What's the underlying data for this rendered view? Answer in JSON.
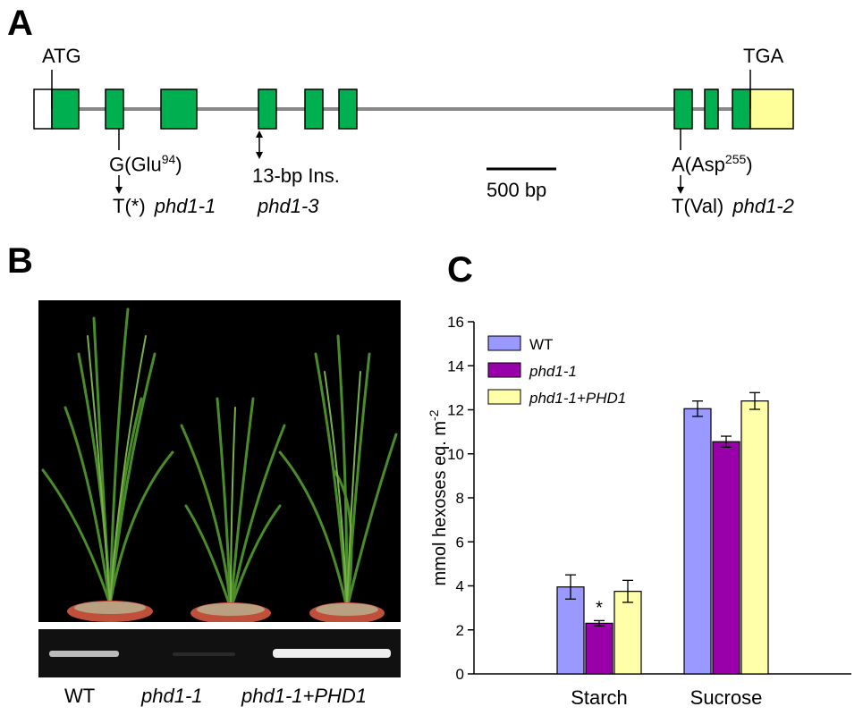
{
  "panel_a": {
    "letter": "A",
    "start_codon": "ATG",
    "stop_codon": "TGA",
    "mut1_from": "G(Glu",
    "mut1_from_sup": "94",
    "mut1_from_end": ")",
    "mut1_to": "T(",
    "mut1_star": "*",
    "mut1_to_end": ")",
    "mut1_allele": "phd1-1",
    "mut3_change": "13-bp Ins.",
    "mut3_allele": "phd1-3",
    "scale_label": "500 bp",
    "mut2_from": "A(Asp",
    "mut2_from_sup": "255",
    "mut2_from_end": ")",
    "mut2_to": "T(Val)",
    "mut2_allele": "phd1-2",
    "colors": {
      "exon": "#00b050",
      "utr5": "#ffffff",
      "utr3": "#ffff99",
      "intron": "#888888"
    }
  },
  "panel_b": {
    "letter": "B",
    "labels": [
      "WT",
      "phd1-1",
      "phd1-1+"
    ],
    "label3_suffix": "PHD1"
  },
  "panel_c": {
    "letter": "C",
    "chart_data": {
      "type": "bar",
      "categories": [
        "Starch",
        "Sucrose"
      ],
      "ylabel": "mmol hexoses eq. m",
      "ylabel_sup": "-2",
      "ylim": [
        0,
        16
      ],
      "yticks": [
        "0",
        "2",
        "4",
        "6",
        "8",
        "10",
        "12",
        "14",
        "16"
      ],
      "legend_position": "top-left",
      "series": [
        {
          "name": "WT",
          "values": [
            3.95,
            12.05
          ],
          "errors": [
            0.55,
            0.35
          ],
          "color": "#9999ff"
        },
        {
          "name": "phd1-1",
          "values": [
            2.3,
            10.55
          ],
          "errors": [
            0.12,
            0.25
          ],
          "color": "#9900aa"
        },
        {
          "name": "phd1-1+PHD1",
          "values": [
            3.75,
            12.4
          ],
          "errors": [
            0.5,
            0.38
          ],
          "color": "#ffffaa"
        }
      ],
      "annotations": [
        "*"
      ]
    }
  }
}
